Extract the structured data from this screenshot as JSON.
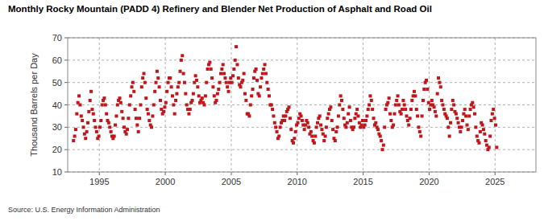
{
  "chart_data": {
    "type": "scatter",
    "title": "Monthly Rocky Mountain (PADD 4) Refinery and Blender Net Production of Asphalt and Road Oil",
    "y_label": "Thousand Barrels per Day",
    "source": "Source: U.S. Energy Information Administration",
    "color": "#c0171c",
    "marker": "square",
    "grid": true,
    "xlim": [
      1992.6,
      2028.1
    ],
    "xticks": [
      1995,
      2000,
      2005,
      2010,
      2015,
      2020,
      2025
    ],
    "ylim": [
      10,
      70
    ],
    "yticks": [
      10,
      20,
      30,
      40,
      50,
      60,
      70
    ],
    "x": [
      1993.042,
      1993.125,
      1993.208,
      1993.292,
      1993.375,
      1993.458,
      1993.542,
      1993.625,
      1993.708,
      1993.792,
      1993.875,
      1993.958,
      1994.042,
      1994.125,
      1994.208,
      1994.292,
      1994.375,
      1994.458,
      1994.542,
      1994.625,
      1994.708,
      1994.792,
      1994.875,
      1994.958,
      1995.042,
      1995.125,
      1995.208,
      1995.292,
      1995.375,
      1995.458,
      1995.542,
      1995.625,
      1995.708,
      1995.792,
      1995.875,
      1995.958,
      1996.042,
      1996.125,
      1996.208,
      1996.292,
      1996.375,
      1996.458,
      1996.542,
      1996.625,
      1996.708,
      1996.792,
      1996.875,
      1996.958,
      1997.042,
      1997.125,
      1997.208,
      1997.292,
      1997.375,
      1997.458,
      1997.542,
      1997.625,
      1997.708,
      1997.792,
      1997.875,
      1997.958,
      1998.042,
      1998.125,
      1998.208,
      1998.292,
      1998.375,
      1998.458,
      1998.542,
      1998.625,
      1998.708,
      1998.792,
      1998.875,
      1998.958,
      1999.042,
      1999.125,
      1999.208,
      1999.292,
      1999.375,
      1999.458,
      1999.542,
      1999.625,
      1999.708,
      1999.792,
      1999.875,
      1999.958,
      2000.042,
      2000.125,
      2000.208,
      2000.292,
      2000.375,
      2000.458,
      2000.542,
      2000.625,
      2000.708,
      2000.792,
      2000.875,
      2000.958,
      2001.042,
      2001.125,
      2001.208,
      2001.292,
      2001.375,
      2001.458,
      2001.542,
      2001.625,
      2001.708,
      2001.792,
      2001.875,
      2001.958,
      2002.042,
      2002.125,
      2002.208,
      2002.292,
      2002.375,
      2002.458,
      2002.542,
      2002.625,
      2002.708,
      2002.792,
      2002.875,
      2002.958,
      2003.042,
      2003.125,
      2003.208,
      2003.292,
      2003.375,
      2003.458,
      2003.542,
      2003.625,
      2003.708,
      2003.792,
      2003.875,
      2003.958,
      2004.042,
      2004.125,
      2004.208,
      2004.292,
      2004.375,
      2004.458,
      2004.542,
      2004.625,
      2004.708,
      2004.792,
      2004.875,
      2004.958,
      2005.042,
      2005.125,
      2005.208,
      2005.292,
      2005.375,
      2005.458,
      2005.542,
      2005.625,
      2005.708,
      2005.792,
      2005.875,
      2005.958,
      2006.042,
      2006.125,
      2006.208,
      2006.292,
      2006.375,
      2006.458,
      2006.542,
      2006.625,
      2006.708,
      2006.792,
      2006.875,
      2006.958,
      2007.042,
      2007.125,
      2007.208,
      2007.292,
      2007.375,
      2007.458,
      2007.542,
      2007.625,
      2007.708,
      2007.792,
      2007.875,
      2007.958,
      2008.042,
      2008.125,
      2008.208,
      2008.292,
      2008.375,
      2008.458,
      2008.542,
      2008.625,
      2008.708,
      2008.792,
      2008.875,
      2008.958,
      2009.042,
      2009.125,
      2009.208,
      2009.292,
      2009.375,
      2009.458,
      2009.542,
      2009.625,
      2009.708,
      2009.792,
      2009.875,
      2009.958,
      2010.042,
      2010.125,
      2010.208,
      2010.292,
      2010.375,
      2010.458,
      2010.542,
      2010.625,
      2010.708,
      2010.792,
      2010.875,
      2010.958,
      2011.042,
      2011.125,
      2011.208,
      2011.292,
      2011.375,
      2011.458,
      2011.542,
      2011.625,
      2011.708,
      2011.792,
      2011.875,
      2011.958,
      2012.042,
      2012.125,
      2012.208,
      2012.292,
      2012.375,
      2012.458,
      2012.542,
      2012.625,
      2012.708,
      2012.792,
      2012.875,
      2012.958,
      2013.042,
      2013.125,
      2013.208,
      2013.292,
      2013.375,
      2013.458,
      2013.542,
      2013.625,
      2013.708,
      2013.792,
      2013.875,
      2013.958,
      2014.042,
      2014.125,
      2014.208,
      2014.292,
      2014.375,
      2014.458,
      2014.542,
      2014.625,
      2014.708,
      2014.792,
      2014.875,
      2014.958,
      2015.042,
      2015.125,
      2015.208,
      2015.292,
      2015.375,
      2015.458,
      2015.542,
      2015.625,
      2015.708,
      2015.792,
      2015.875,
      2015.958,
      2016.042,
      2016.125,
      2016.208,
      2016.292,
      2016.375,
      2016.458,
      2016.542,
      2016.625,
      2016.708,
      2016.792,
      2016.875,
      2016.958,
      2017.042,
      2017.125,
      2017.208,
      2017.292,
      2017.375,
      2017.458,
      2017.542,
      2017.625,
      2017.708,
      2017.792,
      2017.875,
      2017.958,
      2018.042,
      2018.125,
      2018.208,
      2018.292,
      2018.375,
      2018.458,
      2018.542,
      2018.625,
      2018.708,
      2018.792,
      2018.875,
      2018.958,
      2019.042,
      2019.125,
      2019.208,
      2019.292,
      2019.375,
      2019.458,
      2019.542,
      2019.625,
      2019.708,
      2019.792,
      2019.875,
      2019.958,
      2020.042,
      2020.125,
      2020.208,
      2020.292,
      2020.375,
      2020.458,
      2020.542,
      2020.625,
      2020.708,
      2020.792,
      2020.875,
      2020.958,
      2021.042,
      2021.125,
      2021.208,
      2021.292,
      2021.375,
      2021.458,
      2021.542,
      2021.625,
      2021.708,
      2021.792,
      2021.875,
      2021.958,
      2022.042,
      2022.125,
      2022.208,
      2022.292,
      2022.375,
      2022.458,
      2022.542,
      2022.625,
      2022.708,
      2022.792,
      2022.875,
      2022.958,
      2023.042,
      2023.125,
      2023.208,
      2023.292,
      2023.375,
      2023.458,
      2023.542,
      2023.625,
      2023.708,
      2023.792,
      2023.875,
      2023.958,
      2024.042,
      2024.125,
      2024.208,
      2024.292,
      2024.375,
      2024.458,
      2024.542,
      2024.625,
      2024.708,
      2024.792,
      2024.875,
      2024.958,
      2025.042,
      2025.125
    ],
    "values": [
      24,
      26,
      29,
      36,
      41,
      44,
      40,
      35,
      33,
      30,
      27,
      25,
      28,
      32,
      37,
      42,
      46,
      38,
      36,
      33,
      30,
      28,
      25,
      26,
      30,
      33,
      40,
      42,
      43,
      40,
      36,
      33,
      32,
      30,
      28,
      26,
      25,
      26,
      31,
      35,
      40,
      42,
      43,
      41,
      37,
      34,
      30,
      28,
      27,
      29,
      34,
      40,
      44,
      48,
      50,
      46,
      38,
      34,
      31,
      28,
      34,
      40,
      48,
      52,
      54,
      50,
      43,
      38,
      36,
      33,
      31,
      30,
      35,
      40,
      46,
      50,
      55,
      52,
      48,
      42,
      38,
      36,
      37,
      39,
      41,
      46,
      50,
      52,
      52,
      48,
      44,
      40,
      36,
      42,
      45,
      48,
      50,
      55,
      60,
      62,
      54,
      50,
      45,
      40,
      38,
      36,
      38,
      41,
      42,
      45,
      50,
      53,
      51,
      48,
      44,
      41,
      42,
      43,
      41,
      40,
      44,
      50,
      56,
      58,
      59,
      56,
      52,
      48,
      44,
      41,
      42,
      45,
      47,
      50,
      54,
      56,
      58,
      54,
      52,
      50,
      48,
      46,
      50,
      52,
      50,
      53,
      56,
      60,
      66,
      58,
      52,
      49,
      48,
      50,
      51,
      54,
      45,
      42,
      36,
      36,
      35,
      40,
      44,
      47,
      52,
      55,
      56,
      51,
      45,
      44,
      48,
      52,
      54,
      56,
      58,
      54,
      50,
      47,
      44,
      40,
      40,
      38,
      35,
      32,
      30,
      28,
      25,
      26,
      30,
      32,
      33,
      35,
      33,
      35,
      37,
      38,
      39,
      34,
      29,
      24,
      23,
      25,
      28,
      31,
      32,
      34,
      36,
      35,
      33,
      31,
      29,
      31,
      33,
      32,
      30,
      27,
      28,
      26,
      24,
      23,
      26,
      30,
      32,
      34,
      35,
      31,
      29,
      27,
      24,
      26,
      30,
      34,
      36,
      38,
      39,
      33,
      29,
      25,
      24,
      28,
      30,
      35,
      40,
      44,
      42,
      38,
      34,
      31,
      30,
      32,
      36,
      39,
      33,
      30,
      29,
      30,
      34,
      36,
      38,
      35,
      32,
      30,
      31,
      33,
      30,
      31,
      33,
      35,
      38,
      40,
      44,
      42,
      38,
      34,
      31,
      32,
      30,
      29,
      27,
      26,
      24,
      20,
      22,
      30,
      38,
      40,
      41,
      43,
      36,
      33,
      30,
      31,
      36,
      40,
      42,
      44,
      40,
      37,
      36,
      38,
      42,
      40,
      38,
      35,
      33,
      31,
      34,
      38,
      42,
      44,
      46,
      44,
      38,
      35,
      30,
      28,
      26,
      35,
      42,
      47,
      50,
      51,
      47,
      41,
      38,
      40,
      42,
      40,
      39,
      37,
      35,
      45,
      52,
      50,
      48,
      42,
      40,
      38,
      36,
      35,
      34,
      30,
      26,
      32,
      38,
      42,
      40,
      37,
      36,
      34,
      32,
      30,
      28,
      30,
      33,
      36,
      38,
      35,
      31,
      29,
      35,
      38,
      40,
      41,
      39,
      36,
      30,
      26,
      24,
      23,
      28,
      32,
      31,
      29,
      27,
      24,
      22,
      20,
      21,
      26,
      33,
      36,
      38,
      34,
      31,
      21
    ]
  }
}
